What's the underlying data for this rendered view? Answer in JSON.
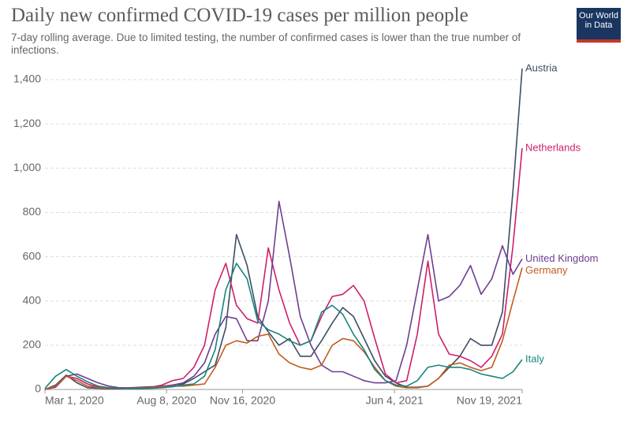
{
  "chart_data": {
    "type": "line",
    "title": "Daily new confirmed COVID-19 cases per million people",
    "subtitle": "7-day rolling average. Due to limited testing, the number of confirmed cases is lower than the true number of infections.",
    "logo": "Our World in Data",
    "x": [
      "2020-03-01",
      "2020-03-15",
      "2020-03-29",
      "2020-04-12",
      "2020-04-26",
      "2020-05-10",
      "2020-05-24",
      "2020-06-07",
      "2020-06-21",
      "2020-07-05",
      "2020-07-19",
      "2020-08-02",
      "2020-08-16",
      "2020-08-30",
      "2020-09-13",
      "2020-09-27",
      "2020-10-11",
      "2020-10-25",
      "2020-11-08",
      "2020-11-22",
      "2020-12-06",
      "2020-12-20",
      "2021-01-03",
      "2021-01-17",
      "2021-01-31",
      "2021-02-14",
      "2021-02-28",
      "2021-03-14",
      "2021-03-28",
      "2021-04-11",
      "2021-04-25",
      "2021-05-09",
      "2021-05-23",
      "2021-06-06",
      "2021-06-20",
      "2021-07-04",
      "2021-07-18",
      "2021-08-01",
      "2021-08-15",
      "2021-08-29",
      "2021-09-12",
      "2021-09-26",
      "2021-10-10",
      "2021-10-24",
      "2021-11-07",
      "2021-11-19"
    ],
    "xlim": [
      "2020-03-01",
      "2021-11-19"
    ],
    "xticks": [
      {
        "value": "2020-03-01",
        "label": "Mar 1, 2020"
      },
      {
        "value": "2020-08-08",
        "label": "Aug 8, 2020"
      },
      {
        "value": "2020-11-16",
        "label": "Nov 16, 2020"
      },
      {
        "value": "2021-06-04",
        "label": "Jun 4, 2021"
      },
      {
        "value": "2021-11-19",
        "label": "Nov 19, 2021"
      }
    ],
    "ylim": [
      0,
      1450
    ],
    "yticks": [
      0,
      200,
      400,
      600,
      800,
      {
        "value": 1000,
        "label": "1,000"
      },
      {
        "value": 1200,
        "label": "1,200"
      },
      {
        "value": 1400,
        "label": "1,400"
      }
    ],
    "grid": true,
    "series": [
      {
        "name": "Austria",
        "color": "#3c4e66",
        "values": [
          0,
          20,
          65,
          30,
          8,
          5,
          3,
          3,
          8,
          10,
          12,
          12,
          20,
          25,
          50,
          80,
          110,
          280,
          700,
          560,
          330,
          260,
          200,
          230,
          150,
          150,
          220,
          300,
          370,
          330,
          230,
          130,
          60,
          30,
          10,
          10,
          15,
          50,
          100,
          150,
          230,
          200,
          200,
          350,
          900,
          1450
        ]
      },
      {
        "name": "Netherlands",
        "color": "#ce1f6a",
        "values": [
          0,
          15,
          60,
          50,
          25,
          10,
          5,
          3,
          5,
          5,
          10,
          20,
          40,
          50,
          100,
          200,
          450,
          570,
          380,
          320,
          300,
          640,
          450,
          300,
          200,
          220,
          330,
          420,
          430,
          470,
          400,
          230,
          70,
          30,
          40,
          250,
          580,
          250,
          160,
          150,
          130,
          100,
          150,
          250,
          650,
          1090
        ]
      },
      {
        "name": "United Kingdom",
        "color": "#6d3e91",
        "values": [
          0,
          10,
          60,
          70,
          50,
          30,
          15,
          8,
          8,
          8,
          10,
          15,
          20,
          30,
          60,
          120,
          250,
          330,
          320,
          220,
          220,
          400,
          850,
          600,
          330,
          200,
          110,
          80,
          80,
          60,
          40,
          30,
          30,
          40,
          200,
          450,
          700,
          400,
          420,
          470,
          560,
          430,
          500,
          650,
          520,
          590
        ]
      },
      {
        "name": "Germany",
        "color": "#c15c1e",
        "values": [
          0,
          15,
          60,
          40,
          15,
          8,
          5,
          5,
          5,
          6,
          8,
          12,
          15,
          15,
          20,
          25,
          100,
          200,
          220,
          210,
          240,
          250,
          160,
          120,
          100,
          90,
          110,
          200,
          230,
          220,
          170,
          100,
          40,
          15,
          8,
          8,
          15,
          50,
          110,
          120,
          100,
          85,
          100,
          220,
          400,
          550
        ]
      },
      {
        "name": "Italy",
        "color": "#18847e",
        "values": [
          5,
          60,
          90,
          60,
          35,
          15,
          8,
          5,
          3,
          3,
          5,
          8,
          12,
          20,
          25,
          60,
          180,
          450,
          570,
          500,
          310,
          270,
          250,
          220,
          200,
          220,
          350,
          380,
          340,
          250,
          180,
          90,
          40,
          20,
          15,
          40,
          100,
          110,
          100,
          100,
          90,
          70,
          60,
          50,
          80,
          135
        ]
      }
    ]
  }
}
